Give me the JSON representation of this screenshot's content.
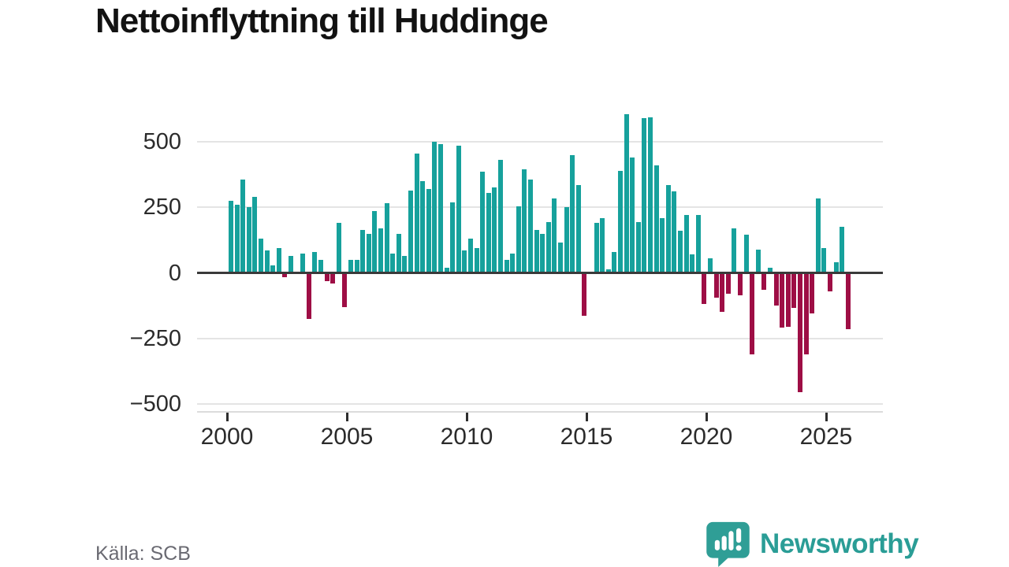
{
  "title": "Nettoinflyttning till Huddinge",
  "source": "Källa: SCB",
  "brand": {
    "name": "Newsworthy",
    "icon": "speech-bubble-bar-chart-icon",
    "color": "#2A9D96"
  },
  "chart_data": {
    "type": "bar",
    "title": "Nettoinflyttning till Huddinge",
    "xlabel": "",
    "ylabel": "",
    "period": "quarterly",
    "start_quarter": "2000Q1",
    "end_quarter": "2025Q4",
    "x_tick_labels": [
      "2000",
      "2005",
      "2010",
      "2015",
      "2020",
      "2025"
    ],
    "y_ticks": [
      500,
      250,
      0,
      -250,
      -500
    ],
    "ylim": [
      -500,
      650
    ],
    "grid": true,
    "legend": "none",
    "colors": {
      "positive": "#16A19C",
      "negative": "#9E0E45"
    },
    "values": [
      275,
      260,
      355,
      250,
      290,
      130,
      85,
      30,
      95,
      -15,
      65,
      0,
      75,
      -175,
      80,
      50,
      -30,
      -40,
      190,
      -130,
      50,
      50,
      165,
      150,
      235,
      170,
      265,
      75,
      150,
      65,
      315,
      455,
      350,
      320,
      500,
      490,
      20,
      270,
      485,
      85,
      130,
      95,
      385,
      305,
      325,
      430,
      50,
      75,
      255,
      395,
      355,
      165,
      150,
      195,
      285,
      115,
      250,
      450,
      335,
      -165,
      0,
      190,
      210,
      15,
      80,
      390,
      605,
      440,
      195,
      590,
      595,
      410,
      210,
      335,
      310,
      160,
      220,
      70,
      220,
      -120,
      55,
      -95,
      -150,
      -80,
      170,
      -85,
      145,
      -310,
      90,
      -65,
      20,
      -125,
      -210,
      -205,
      -135,
      -455,
      -310,
      -155,
      285,
      95,
      -70,
      40,
      175,
      -215
    ]
  }
}
